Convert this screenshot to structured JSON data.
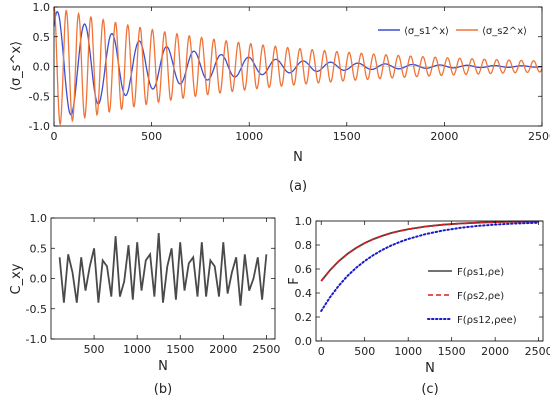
{
  "chart_data": [
    {
      "panel_label": "(a)",
      "type": "line",
      "xlabel": "N",
      "ylabel": "⟨σ_s^x⟩",
      "xlim": [
        0,
        2500
      ],
      "ylim": [
        -1.0,
        1.0
      ],
      "x_ticks": [
        "0",
        "500",
        "1000",
        "1500",
        "2000",
        "2500"
      ],
      "y_ticks": [
        "-1.0",
        "-0.5",
        "0.0",
        "0.5",
        "1.0"
      ],
      "legend_position": "top-right",
      "series": [
        {
          "name": "⟨σ_s1^x⟩",
          "color": "#3b4fd1",
          "model": {
            "amplitude": 0.95,
            "decay_length": 550,
            "period": 140,
            "phase_deg": -45
          }
        },
        {
          "name": "⟨σ_s2^x⟩",
          "color": "#f07438",
          "model": {
            "amplitude": 1.0,
            "decay_length": 1050,
            "period": 63,
            "phase_deg": 0
          }
        }
      ]
    },
    {
      "panel_label": "(b)",
      "type": "line",
      "xlabel": "N",
      "ylabel": "C_xy",
      "xlim": [
        0,
        2600
      ],
      "ylim": [
        -1.0,
        1.0
      ],
      "x_ticks": [
        "500",
        "1000",
        "1500",
        "2000",
        "2500"
      ],
      "y_ticks": [
        "-1.0",
        "-0.5",
        "0.0",
        "0.5",
        "1.0"
      ],
      "series": [
        {
          "color": "#4a4a4a",
          "x": [
            100,
            150,
            200,
            250,
            300,
            350,
            400,
            450,
            500,
            550,
            600,
            650,
            700,
            750,
            800,
            850,
            900,
            950,
            1000,
            1050,
            1100,
            1150,
            1200,
            1250,
            1300,
            1350,
            1400,
            1450,
            1500,
            1550,
            1600,
            1650,
            1700,
            1750,
            1800,
            1850,
            1900,
            1950,
            2000,
            2050,
            2100,
            2150,
            2200,
            2250,
            2300,
            2350,
            2400,
            2450,
            2500
          ],
          "y": [
            0.35,
            -0.4,
            0.4,
            0.1,
            -0.4,
            0.35,
            -0.2,
            0.2,
            0.5,
            -0.4,
            0.3,
            0.2,
            -0.3,
            0.7,
            -0.3,
            -0.05,
            0.55,
            -0.35,
            0.6,
            -0.2,
            0.3,
            0.4,
            -0.3,
            0.75,
            -0.4,
            0.2,
            0.5,
            -0.35,
            0.6,
            -0.2,
            0.25,
            0.35,
            -0.3,
            0.6,
            -0.3,
            0.3,
            0.2,
            -0.3,
            0.6,
            -0.25,
            0.1,
            0.35,
            -0.45,
            0.4,
            -0.2,
            0.0,
            0.35,
            -0.35,
            0.4
          ]
        }
      ]
    },
    {
      "panel_label": "(c)",
      "type": "line",
      "xlabel": "N",
      "ylabel": "F",
      "xlim": [
        -60,
        2550
      ],
      "ylim": [
        0.0,
        1.0
      ],
      "x_ticks": [
        "0",
        "500",
        "1000",
        "1500",
        "2000",
        "2500"
      ],
      "y_ticks": [
        "0.0",
        "0.2",
        "0.4",
        "0.6",
        "0.8",
        "1.0"
      ],
      "legend_position": "bottom-right",
      "series": [
        {
          "name": "F(ρs1,ρe)",
          "color": "#444444",
          "dash": "solid",
          "x": [
            0,
            100,
            200,
            300,
            400,
            500,
            600,
            700,
            800,
            900,
            1000,
            1200,
            1400,
            1600,
            1800,
            2000,
            2200,
            2500
          ],
          "y": [
            0.5,
            0.589,
            0.664,
            0.725,
            0.775,
            0.816,
            0.849,
            0.876,
            0.899,
            0.917,
            0.932,
            0.954,
            0.969,
            0.979,
            0.986,
            0.991,
            0.994,
            0.997
          ]
        },
        {
          "name": "F(ρs2,ρe)",
          "color": "#d42020",
          "dash": "dashed",
          "x": [
            0,
            100,
            200,
            300,
            400,
            500,
            600,
            700,
            800,
            900,
            1000,
            1200,
            1400,
            1600,
            1800,
            2000,
            2200,
            2500
          ],
          "y": [
            0.5,
            0.589,
            0.664,
            0.725,
            0.775,
            0.816,
            0.849,
            0.876,
            0.899,
            0.917,
            0.932,
            0.954,
            0.969,
            0.979,
            0.986,
            0.991,
            0.994,
            0.997
          ]
        },
        {
          "name": "F(ρs12,ρee)",
          "color": "#1a1acc",
          "dash": "dotted",
          "x": [
            0,
            100,
            200,
            300,
            400,
            500,
            600,
            700,
            800,
            900,
            1000,
            1200,
            1400,
            1600,
            1800,
            2000,
            2200,
            2500
          ],
          "y": [
            0.25,
            0.363,
            0.459,
            0.541,
            0.609,
            0.667,
            0.716,
            0.758,
            0.794,
            0.824,
            0.85,
            0.891,
            0.921,
            0.943,
            0.959,
            0.97,
            0.978,
            0.986
          ]
        }
      ]
    }
  ]
}
